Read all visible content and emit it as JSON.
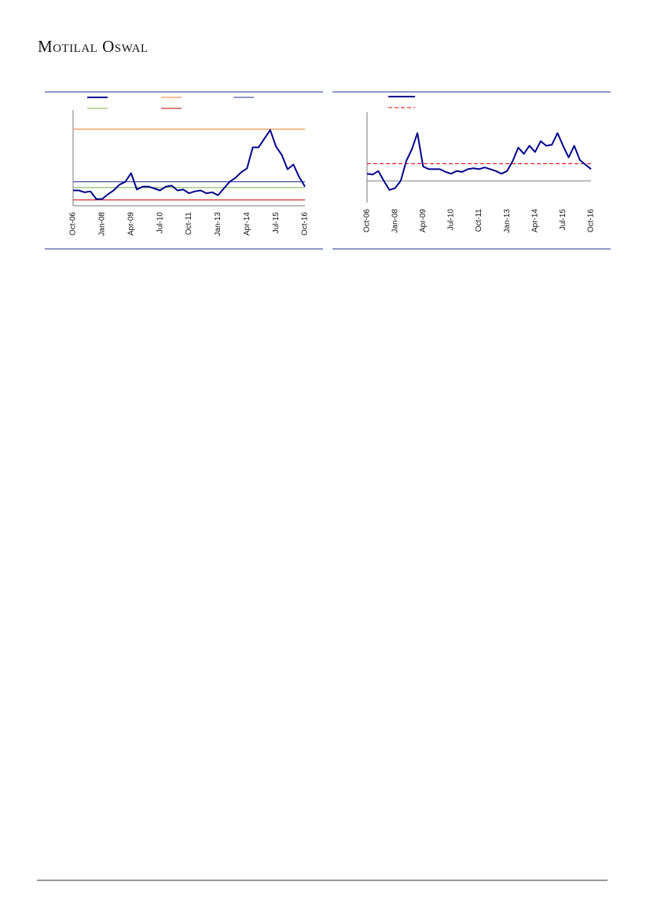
{
  "header": {
    "brand": "Motilal Oswal"
  },
  "chart_data": [
    {
      "type": "line",
      "categories": [
        "Oct-06",
        null,
        null,
        null,
        null,
        "Jan-08",
        null,
        null,
        null,
        null,
        "Apr-09",
        null,
        null,
        null,
        null,
        "Jul-10",
        null,
        null,
        null,
        null,
        "Oct-11",
        null,
        null,
        null,
        null,
        "Jan-13",
        null,
        null,
        null,
        null,
        "Apr-14",
        null,
        null,
        null,
        null,
        "Jul-15",
        null,
        null,
        null,
        null,
        "Oct-16"
      ],
      "ylim": [
        0,
        100
      ],
      "series": [
        {
          "color": "#00008b",
          "values": [
            16,
            16,
            14,
            15,
            7,
            7,
            12,
            16,
            22,
            25,
            34,
            17,
            20,
            20,
            18,
            16,
            20,
            21,
            16,
            17,
            13,
            15,
            16,
            13,
            14,
            11,
            18,
            25,
            29,
            35,
            39,
            61,
            61,
            70,
            79,
            62,
            53,
            38,
            43,
            30,
            20
          ]
        }
      ],
      "hlines": [
        {
          "value": 80,
          "color": "#ed7d31"
        },
        {
          "value": 25,
          "color": "#1f2f8f"
        },
        {
          "value": 19,
          "color": "#70ad47"
        },
        {
          "value": 6,
          "color": "#c00000"
        }
      ]
    },
    {
      "type": "line",
      "categories": [
        "Oct-06",
        null,
        null,
        null,
        null,
        "Jan-08",
        null,
        null,
        null,
        null,
        "Apr-09",
        null,
        null,
        null,
        null,
        "Jul-10",
        null,
        null,
        null,
        null,
        "Oct-11",
        null,
        null,
        null,
        null,
        "Jan-13",
        null,
        null,
        null,
        null,
        "Apr-14",
        null,
        null,
        null,
        null,
        "Jul-15",
        null,
        null,
        null,
        null,
        "Oct-16"
      ],
      "ylim": [
        0,
        100
      ],
      "series": [
        {
          "color": "#00008b",
          "values": [
            32,
            31,
            35,
            24,
            14,
            16,
            24,
            46,
            59,
            77,
            40,
            37,
            37,
            37,
            34,
            32,
            35,
            34,
            37,
            38,
            37,
            39,
            37,
            35,
            32,
            35,
            46,
            61,
            54,
            63,
            56,
            68,
            63,
            64,
            77,
            63,
            50,
            63,
            47,
            42,
            37
          ]
        }
      ],
      "hlines": [
        {
          "value": 43,
          "color": "#e00000",
          "dashed": true
        },
        {
          "value": 24,
          "color": "#7f7f7f"
        }
      ]
    }
  ]
}
